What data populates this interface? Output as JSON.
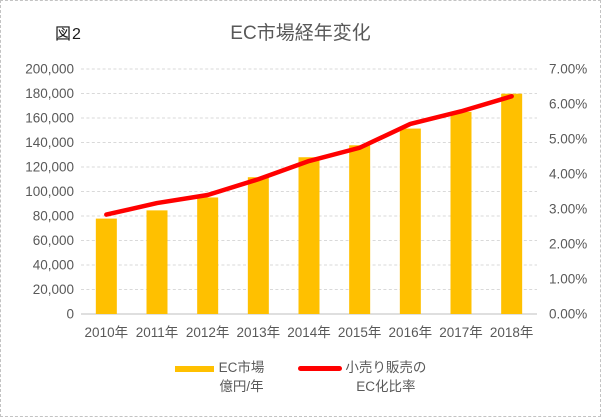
{
  "figure_label": "図2",
  "title": "EC市場経年変化",
  "colors": {
    "bar": "#FFC000",
    "line": "#FF0000",
    "grid": "#D9D9D9",
    "axis_line": "#BFBFBF",
    "text": "#595959",
    "figure_label_text": "#1A1A1A"
  },
  "legend": {
    "items": [
      {
        "swatch": "bar",
        "color": "#FFC000",
        "lines": [
          "EC市場",
          "億円/年"
        ]
      },
      {
        "swatch": "line",
        "color": "#FF0000",
        "lines": [
          "小売り販売の",
          "EC化比率"
        ]
      }
    ]
  },
  "chart_data": {
    "type": "combo-bar-line",
    "title": "EC市場経年変化",
    "figure_label": "図2",
    "categories": [
      "2010年",
      "2011年",
      "2012年",
      "2013年",
      "2014年",
      "2015年",
      "2016年",
      "2017年",
      "2018年"
    ],
    "series": [
      {
        "name": "EC市場 億円/年",
        "type": "bar",
        "axis": "left",
        "color": "#FFC000",
        "values": [
          77880,
          84590,
          95130,
          111660,
          127970,
          137746,
          151358,
          165054,
          179845
        ]
      },
      {
        "name": "小売り販売のEC化比率",
        "type": "line",
        "axis": "right",
        "color": "#FF0000",
        "values": [
          2.84,
          3.17,
          3.4,
          3.85,
          4.37,
          4.75,
          5.43,
          5.79,
          6.22
        ]
      }
    ],
    "left_axis": {
      "min": 0,
      "max": 200000,
      "step": 20000,
      "tick_labels": [
        "0",
        "20,000",
        "40,000",
        "60,000",
        "80,000",
        "100,000",
        "120,000",
        "140,000",
        "160,000",
        "180,000",
        "200,000"
      ]
    },
    "right_axis": {
      "min": 0,
      "max": 7,
      "step": 1,
      "tick_labels": [
        "0.00%",
        "1.00%",
        "2.00%",
        "3.00%",
        "4.00%",
        "5.00%",
        "6.00%",
        "7.00%"
      ]
    },
    "grid": true,
    "legend_position": "bottom"
  }
}
